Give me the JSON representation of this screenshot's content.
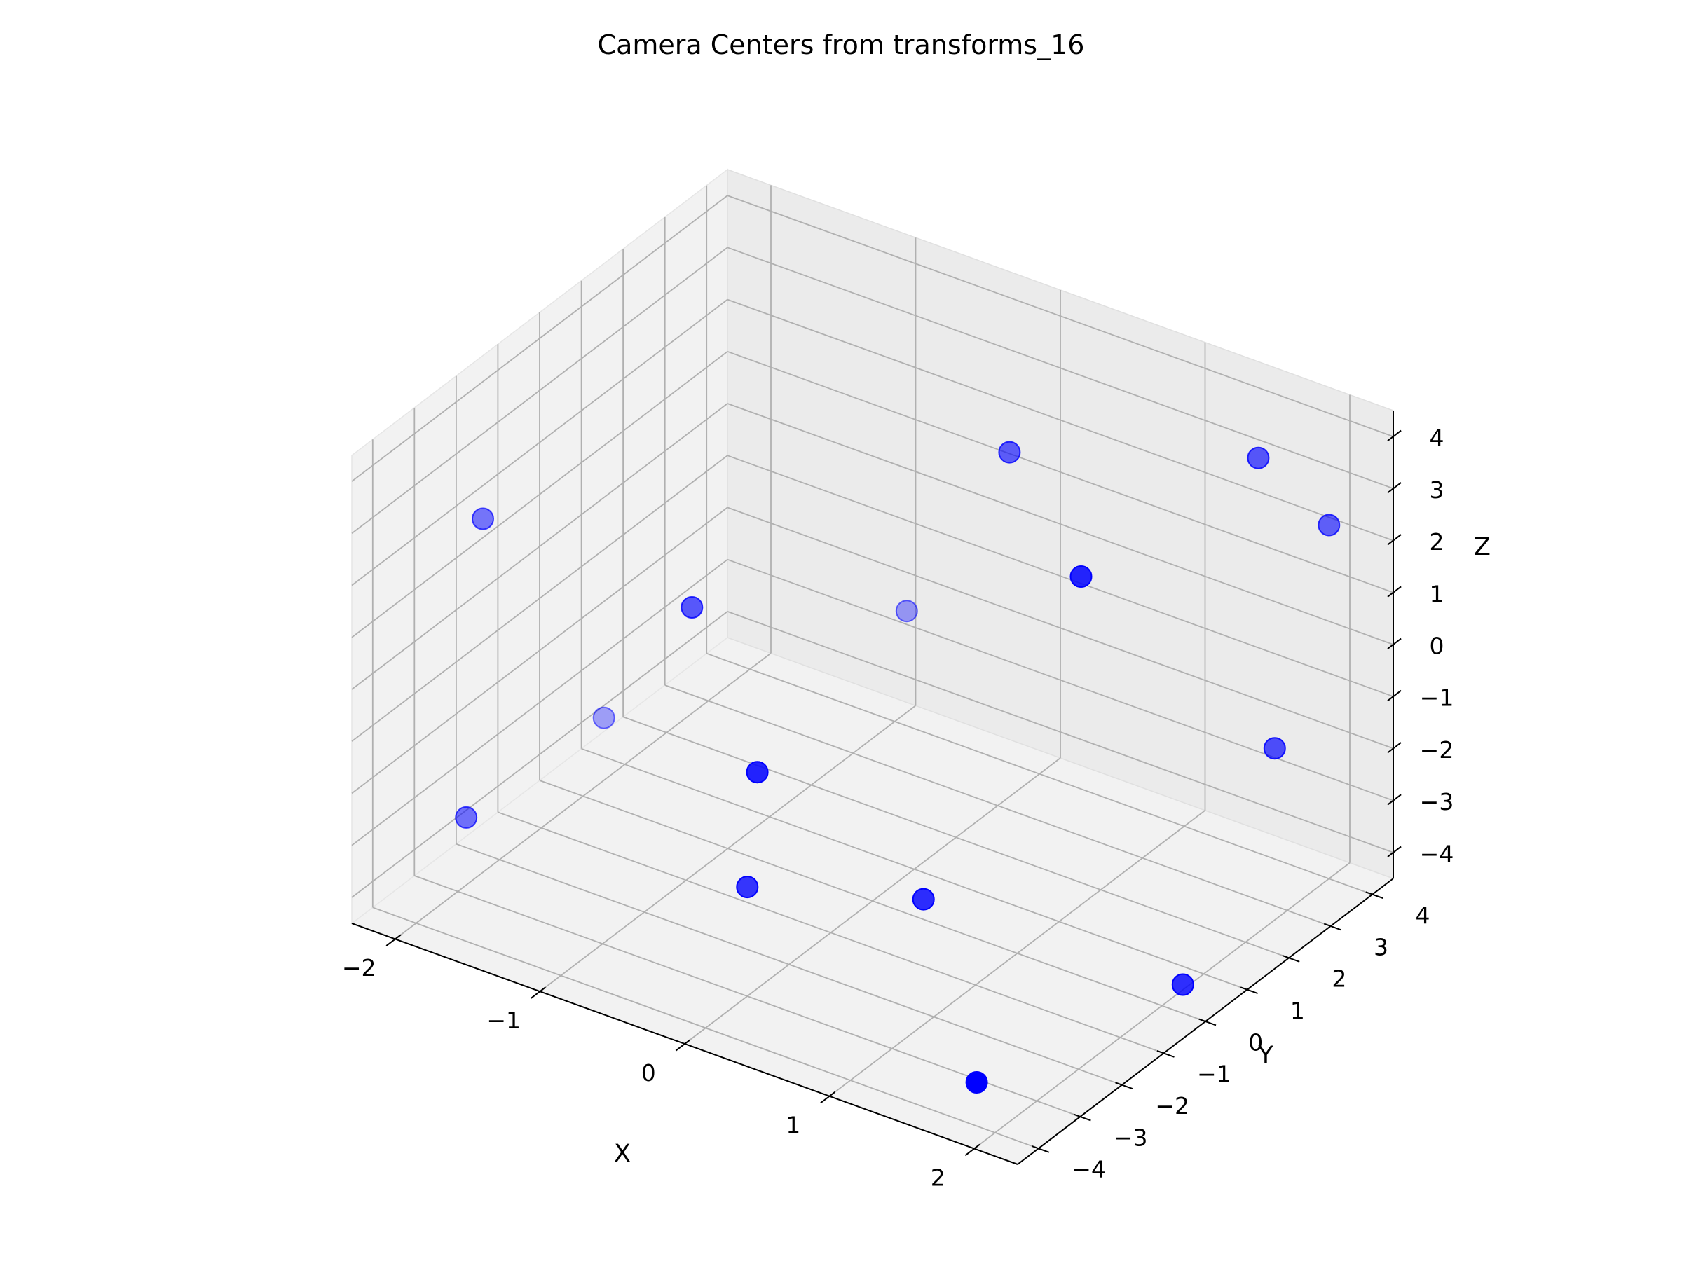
{
  "chart_data": {
    "type": "scatter",
    "projection": "3d",
    "title": "Camera Centers from transforms_16",
    "xlabel": "X",
    "ylabel": "Y",
    "zlabel": "Z",
    "xlim": [
      -2.3,
      2.3
    ],
    "ylim": [
      -4.5,
      4.5
    ],
    "zlim": [
      -4.5,
      4.5
    ],
    "x_ticks": [
      -2,
      -1,
      0,
      1,
      2
    ],
    "y_ticks": [
      -4,
      -3,
      -2,
      -1,
      0,
      1,
      2,
      3,
      4
    ],
    "z_ticks": [
      -4,
      -3,
      -2,
      -1,
      0,
      1,
      2,
      3,
      4
    ],
    "x_tick_labels": [
      "−2",
      "−1",
      "0",
      "1",
      "2"
    ],
    "y_tick_labels": [
      "−4",
      "−3",
      "−2",
      "−1",
      "0",
      "1",
      "2",
      "3",
      "4"
    ],
    "z_tick_labels": [
      "−4",
      "−3",
      "−2",
      "−1",
      "0",
      "1",
      "2",
      "3",
      "4"
    ],
    "grid": true,
    "marker_color": "#0000ff",
    "points": [
      {
        "x": -2.0,
        "y": -2.4,
        "z": 2.3
      },
      {
        "x": -0.7,
        "y": -1.9,
        "z": 1.6
      },
      {
        "x": -0.6,
        "y": 2.9,
        "z": -1.3
      },
      {
        "x": 0.3,
        "y": -3.8,
        "z": 0.6
      },
      {
        "x": 0.6,
        "y": 1.2,
        "z": 4.0
      },
      {
        "x": 1.7,
        "y": -0.9,
        "z": 4.0
      },
      {
        "x": 1.8,
        "y": 3.0,
        "z": 4.0
      },
      {
        "x": 2.0,
        "y": 4.0,
        "z": 2.3
      },
      {
        "x": 2.0,
        "y": 2.7,
        "z": -1.2
      },
      {
        "x": 0.9,
        "y": -1.9,
        "z": -2.4
      },
      {
        "x": 0.0,
        "y": -3.0,
        "z": -2.4
      },
      {
        "x": -2.0,
        "y": 0.5,
        "z": -3.3
      },
      {
        "x": -2.0,
        "y": -2.8,
        "z": -3.2
      },
      {
        "x": 1.7,
        "y": -3.4,
        "z": -4.2
      },
      {
        "x": 2.0,
        "y": 0.5,
        "z": -4.4
      }
    ]
  }
}
